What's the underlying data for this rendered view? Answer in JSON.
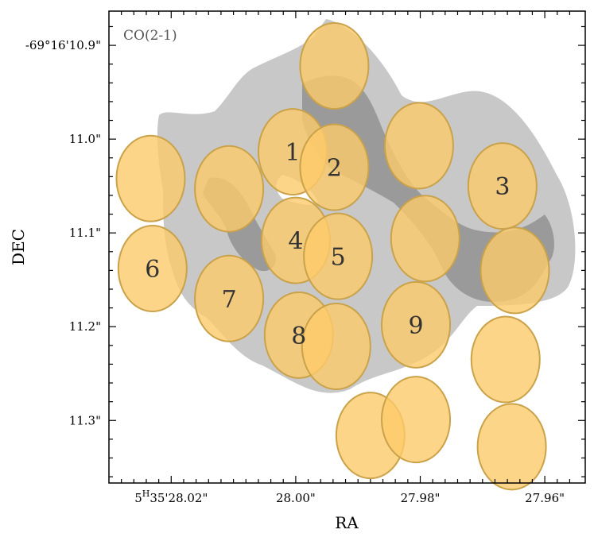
{
  "chart_data": {
    "type": "scatter",
    "title": "",
    "xlabel": "RA",
    "ylabel": "DEC",
    "annotation": "CO(2-1)",
    "x_ticks": [
      {
        "label_main": "5",
        "label_sup": "H",
        "label_rest": "35'28.02\"",
        "value": 28.02
      },
      {
        "label": "28.00\"",
        "value": 28.0
      },
      {
        "label": "27.98\"",
        "value": 27.98
      },
      {
        "label": "27.96\"",
        "value": 27.96
      }
    ],
    "y_ticks": [
      {
        "label": "-69°16'10.9\"",
        "value": 10.9
      },
      {
        "label": "11.0\"",
        "value": 11.0
      },
      {
        "label": "11.1\"",
        "value": 11.1
      },
      {
        "label": "11.2\"",
        "value": 11.2
      },
      {
        "label": "11.3\"",
        "value": 11.3
      }
    ],
    "xlim": [
      28.03,
      27.9535
    ],
    "ylim": [
      10.8635,
      11.3667
    ],
    "colors": {
      "beam_fill": "#fdcb6a",
      "beam_stroke": "#c9a24a",
      "emission_light": "#c8c8c8",
      "emission_dark": "#8e8e8e"
    },
    "beams": [
      {
        "label": "",
        "ra": 28.0233,
        "dec": 11.042
      },
      {
        "label": "",
        "ra": 28.0107,
        "dec": 11.053
      },
      {
        "label": "1",
        "ra": 28.0005,
        "dec": 11.0135
      },
      {
        "label": "",
        "ra": 27.9938,
        "dec": 10.922
      },
      {
        "label": "2",
        "ra": 27.9938,
        "dec": 11.03
      },
      {
        "label": "",
        "ra": 27.9802,
        "dec": 11.007
      },
      {
        "label": "3",
        "ra": 27.9668,
        "dec": 11.05
      },
      {
        "label": "4",
        "ra": 28.0,
        "dec": 11.108
      },
      {
        "label": "5",
        "ra": 27.9932,
        "dec": 11.125
      },
      {
        "label": "",
        "ra": 27.9792,
        "dec": 11.106
      },
      {
        "label": "",
        "ra": 27.9648,
        "dec": 11.14
      },
      {
        "label": "6",
        "ra": 28.023,
        "dec": 11.138
      },
      {
        "label": "7",
        "ra": 28.0107,
        "dec": 11.17
      },
      {
        "label": "8",
        "ra": 27.9995,
        "dec": 11.209
      },
      {
        "label": "",
        "ra": 27.9935,
        "dec": 11.221
      },
      {
        "label": "9",
        "ra": 27.9807,
        "dec": 11.198
      },
      {
        "label": "",
        "ra": 27.9663,
        "dec": 11.235
      },
      {
        "label": "",
        "ra": 27.988,
        "dec": 11.316
      },
      {
        "label": "",
        "ra": 27.9807,
        "dec": 11.299
      },
      {
        "label": "",
        "ra": 27.9653,
        "dec": 11.328
      }
    ]
  }
}
